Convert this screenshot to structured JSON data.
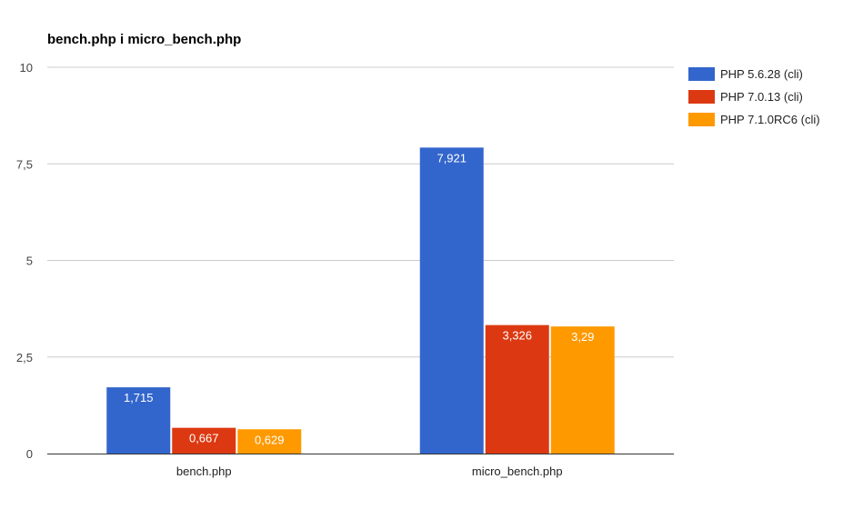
{
  "chart_data": {
    "type": "bar",
    "title": "bench.php i micro_bench.php",
    "categories": [
      "bench.php",
      "micro_bench.php"
    ],
    "series": [
      {
        "name": "PHP 5.6.28 (cli)",
        "color": "#3366cc",
        "values": [
          1.715,
          7.921
        ],
        "labels": [
          "1,715",
          "7,921"
        ]
      },
      {
        "name": "PHP 7.0.13 (cli)",
        "color": "#dc3912",
        "values": [
          0.667,
          3.326
        ],
        "labels": [
          "0,667",
          "3,326"
        ]
      },
      {
        "name": "PHP 7.1.0RC6 (cli)",
        "color": "#ff9900",
        "values": [
          0.629,
          3.29
        ],
        "labels": [
          "0,629",
          "3,29"
        ]
      }
    ],
    "ylim": [
      0,
      10
    ],
    "yticks": [
      0,
      2.5,
      5,
      7.5,
      10
    ],
    "ytick_labels": [
      "0",
      "2,5",
      "5",
      "7,5",
      "10"
    ],
    "grid": true,
    "legend_position": "right"
  }
}
